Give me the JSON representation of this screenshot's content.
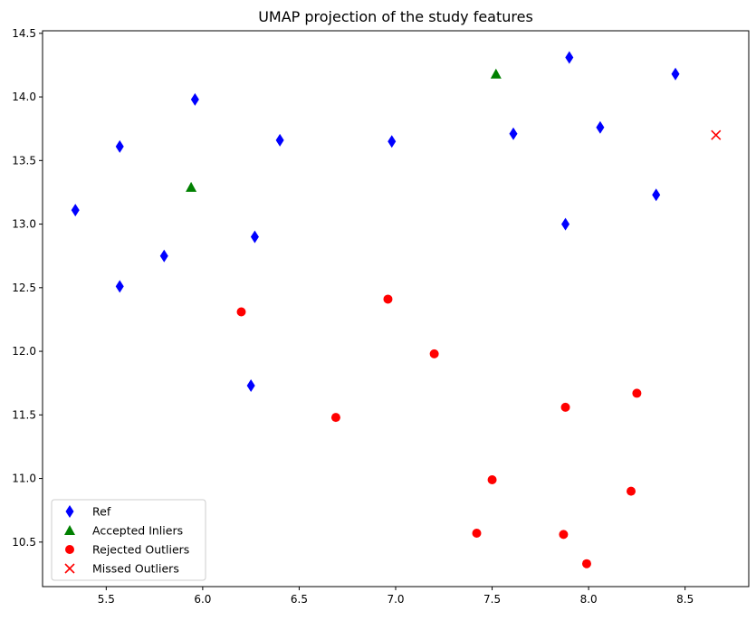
{
  "chart_data": {
    "type": "scatter",
    "title": "UMAP projection of the study features",
    "xlabel": "",
    "ylabel": "",
    "xlim": [
      5.17,
      8.83
    ],
    "ylim": [
      10.15,
      14.52
    ],
    "xticks": [
      5.5,
      6.0,
      6.5,
      7.0,
      7.5,
      8.0,
      8.5
    ],
    "xtick_labels": [
      "5.5",
      "6.0",
      "6.5",
      "7.0",
      "7.5",
      "8.0",
      "8.5"
    ],
    "yticks": [
      10.5,
      11.0,
      11.5,
      12.0,
      12.5,
      13.0,
      13.5,
      14.0,
      14.5
    ],
    "ytick_labels": [
      "10.5",
      "11.0",
      "11.5",
      "12.0",
      "12.5",
      "13.0",
      "13.5",
      "14.0",
      "14.5"
    ],
    "grid": false,
    "legend_position": "lower-left",
    "series": [
      {
        "name": "Ref",
        "marker": "diamond",
        "color": "#0000ff",
        "points": [
          [
            5.34,
            13.11
          ],
          [
            5.57,
            13.61
          ],
          [
            5.57,
            12.51
          ],
          [
            5.8,
            12.75
          ],
          [
            5.96,
            13.98
          ],
          [
            6.25,
            11.73
          ],
          [
            6.27,
            12.9
          ],
          [
            6.4,
            13.66
          ],
          [
            6.98,
            13.65
          ],
          [
            7.61,
            13.71
          ],
          [
            7.88,
            13.0
          ],
          [
            7.9,
            14.31
          ],
          [
            8.06,
            13.76
          ],
          [
            8.35,
            13.23
          ],
          [
            8.45,
            14.18
          ]
        ]
      },
      {
        "name": "Accepted Inliers",
        "marker": "triangle",
        "color": "#008000",
        "points": [
          [
            5.94,
            13.29
          ],
          [
            7.52,
            14.18
          ]
        ]
      },
      {
        "name": "Rejected Outliers",
        "marker": "circle",
        "color": "#ff0000",
        "points": [
          [
            6.2,
            12.31
          ],
          [
            6.69,
            11.48
          ],
          [
            6.96,
            12.41
          ],
          [
            7.2,
            11.98
          ],
          [
            7.42,
            10.57
          ],
          [
            7.5,
            10.99
          ],
          [
            7.87,
            10.56
          ],
          [
            7.88,
            11.56
          ],
          [
            7.99,
            10.33
          ],
          [
            8.22,
            10.9
          ],
          [
            8.25,
            11.67
          ]
        ]
      },
      {
        "name": "Missed Outliers",
        "marker": "x",
        "color": "#ff0000",
        "points": [
          [
            8.66,
            13.7
          ]
        ]
      }
    ]
  }
}
